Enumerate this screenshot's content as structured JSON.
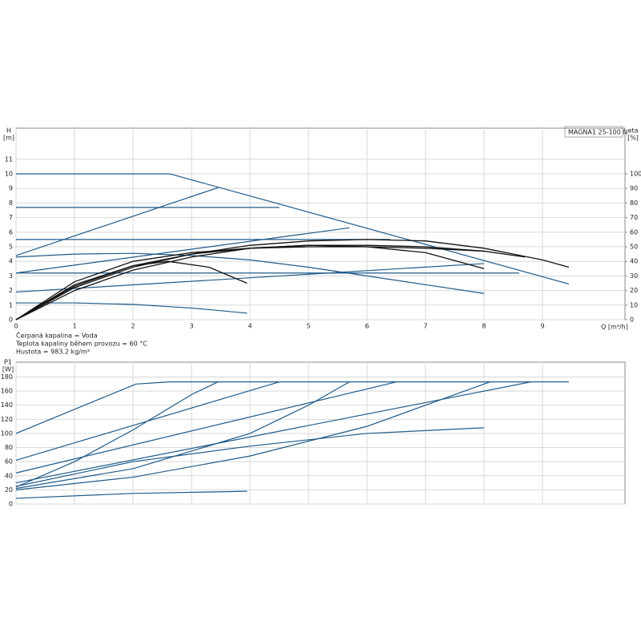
{
  "chart_data": [
    {
      "type": "line",
      "legend_box": "MAGNA1 25-100 N",
      "ylabel": "H",
      "yunit": "[m]",
      "y2label": "eta",
      "y2unit": "[%]",
      "xlabel": "Q [m³/h]",
      "annotations": [
        "Čerpaná kapalina = Voda",
        "Teplota kapaliny během provozu = 60 °C",
        "Hustota = 983.2 kg/m³"
      ],
      "xlim": [
        0,
        10.41
      ],
      "ylim": [
        0,
        13.13
      ],
      "y2lim": [
        0,
        131.3
      ],
      "xticks": [
        0,
        1,
        2,
        3,
        4,
        5,
        6,
        7,
        8,
        9
      ],
      "xtick_labels": true,
      "yticks": [
        0,
        1,
        2,
        3,
        4,
        5,
        6,
        7,
        8,
        9,
        10,
        11
      ],
      "y2ticks": [
        0,
        10,
        20,
        30,
        40,
        50,
        60,
        70,
        80,
        90,
        100
      ],
      "grid": true,
      "series": [
        {
          "color": "#1f5a8a",
          "x": [
            0,
            2.63,
            9.45
          ],
          "values": [
            10,
            10,
            2.45
          ]
        },
        {
          "color": "#1f5a8a",
          "x": [
            0,
            4.5
          ],
          "values": [
            7.7,
            7.7
          ]
        },
        {
          "color": "#1f5a8a",
          "x": [
            0,
            3.45
          ],
          "values": [
            4.4,
            9.05
          ]
        },
        {
          "color": "#1f5a8a",
          "x": [
            0,
            6.4
          ],
          "values": [
            5.5,
            5.5
          ]
        },
        {
          "color": "#1f5a8a",
          "x": [
            0,
            5.7
          ],
          "values": [
            3.2,
            6.3
          ]
        },
        {
          "color": "#1f5a8a",
          "x": [
            0,
            1,
            2,
            3,
            4,
            5,
            6,
            7,
            8
          ],
          "values": [
            4.3,
            4.5,
            4.55,
            4.4,
            4.1,
            3.6,
            3.0,
            2.4,
            1.8
          ]
        },
        {
          "color": "#1f5a8a",
          "x": [
            0,
            8.6
          ],
          "values": [
            3.2,
            3.2
          ]
        },
        {
          "color": "#1f5a8a",
          "x": [
            0,
            8
          ],
          "values": [
            1.9,
            3.85
          ]
        },
        {
          "color": "#1f5a8a",
          "x": [
            0,
            1,
            2,
            3,
            3.95
          ],
          "values": [
            1.15,
            1.15,
            1.05,
            0.8,
            0.45
          ]
        },
        {
          "color": "#111111",
          "axis": "y2",
          "x": [
            0,
            1,
            2,
            3,
            4,
            5,
            6,
            7,
            8,
            9,
            9.45
          ],
          "values": [
            0,
            22,
            36,
            45,
            51,
            54,
            55,
            54,
            49,
            41,
            36
          ]
        },
        {
          "color": "#111111",
          "axis": "y2",
          "x": [
            0,
            1,
            2,
            2.6,
            3.3,
            3.95
          ],
          "values": [
            0,
            24,
            37,
            40,
            36,
            25
          ]
        },
        {
          "color": "#111111",
          "axis": "y2",
          "x": [
            0,
            1,
            2,
            3,
            4,
            5,
            6,
            7,
            8
          ],
          "values": [
            0,
            23,
            37,
            45,
            49,
            51,
            50,
            46,
            35
          ]
        },
        {
          "color": "#111111",
          "axis": "y2",
          "x": [
            0,
            1,
            2,
            3,
            4,
            5,
            6,
            7,
            8,
            8.7
          ],
          "values": [
            0,
            20,
            34,
            43,
            49,
            51,
            51,
            50,
            47,
            43
          ]
        },
        {
          "color": "#111111",
          "axis": "y2",
          "x": [
            0,
            1,
            2,
            3,
            4,
            5,
            6,
            7,
            8
          ],
          "values": [
            0,
            26,
            40,
            46,
            49,
            50,
            50,
            49,
            47
          ]
        }
      ]
    },
    {
      "type": "line",
      "ylabel": "P1",
      "yunit": "[W]",
      "xlim": [
        0,
        10.41
      ],
      "ylim": [
        0,
        201
      ],
      "xticks": [
        0,
        1,
        2,
        3,
        4,
        5,
        6,
        7,
        8,
        9
      ],
      "xtick_labels": false,
      "yticks": [
        0,
        20,
        40,
        60,
        80,
        100,
        120,
        140,
        160,
        180
      ],
      "grid": true,
      "series": [
        {
          "color": "#1f5a8a",
          "x": [
            0,
            2.05,
            2.63,
            9.45
          ],
          "values": [
            100,
            170,
            173,
            173
          ]
        },
        {
          "color": "#1f5a8a",
          "x": [
            0,
            4.5
          ],
          "values": [
            62,
            173
          ]
        },
        {
          "color": "#1f5a8a",
          "x": [
            0,
            1,
            2,
            3,
            3.45
          ],
          "values": [
            24,
            60,
            105,
            155,
            173
          ]
        },
        {
          "color": "#1f5a8a",
          "x": [
            0,
            6.5
          ],
          "values": [
            44,
            173
          ]
        },
        {
          "color": "#1f5a8a",
          "x": [
            0,
            2,
            4,
            5,
            5.7
          ],
          "values": [
            22,
            50,
            100,
            140,
            173
          ]
        },
        {
          "color": "#1f5a8a",
          "x": [
            0,
            8.8
          ],
          "values": [
            30,
            173
          ]
        },
        {
          "color": "#1f5a8a",
          "x": [
            0,
            2,
            4,
            6,
            8.1
          ],
          "values": [
            20,
            38,
            68,
            110,
            173
          ]
        },
        {
          "color": "#1f5a8a",
          "x": [
            0,
            2,
            4,
            6,
            8
          ],
          "values": [
            25,
            60,
            82,
            100,
            108
          ]
        },
        {
          "color": "#1f5a8a",
          "x": [
            0,
            2,
            3.95
          ],
          "values": [
            8,
            15,
            18
          ]
        }
      ]
    }
  ]
}
